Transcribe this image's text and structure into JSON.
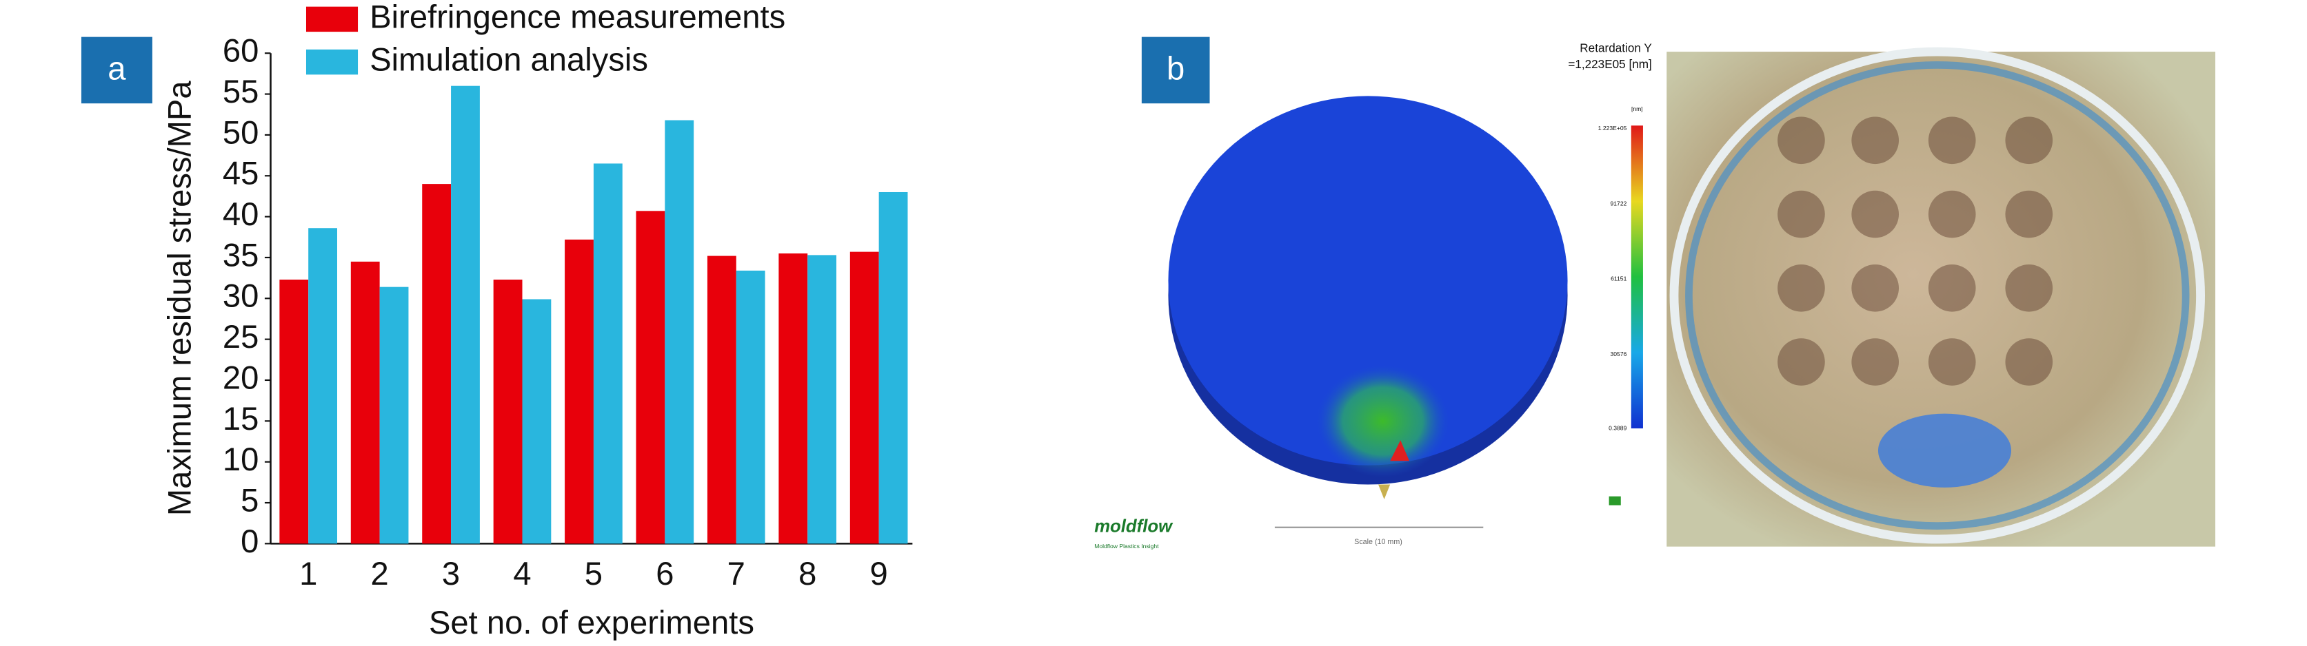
{
  "chart_data": {
    "type": "bar",
    "x_label": "Set no. of experiments",
    "y_label": "Maximum residual stress/MPa",
    "categories": [
      "1",
      "2",
      "3",
      "4",
      "5",
      "6",
      "7",
      "8",
      "9"
    ],
    "series": [
      {
        "name": "Birefringence measurements",
        "color": "#e8000b",
        "values": [
          32.3,
          34.5,
          44,
          32.3,
          37.2,
          40.7,
          35.2,
          35.5,
          35.7
        ]
      },
      {
        "name": "Simulation analysis",
        "color": "#29b6de",
        "values": [
          38.6,
          31.4,
          56,
          29.9,
          46.5,
          51.8,
          33.4,
          35.3,
          43
        ]
      }
    ],
    "ylim": [
      0,
      60
    ],
    "yticks": [
      0,
      5,
      10,
      15,
      20,
      25,
      30,
      35,
      40,
      45,
      50,
      55,
      60
    ],
    "grid": false,
    "legend": "top"
  },
  "panel_labels": [
    "a",
    "b"
  ],
  "simulation_panel": {
    "result_title": "Retardation Y",
    "result_max": "=1,223E05 [nm]",
    "unit": "[nm]",
    "scale_labels": [
      "1.223E+05",
      "91722",
      "61151",
      "30576",
      "0.3889"
    ],
    "logo": "moldflow",
    "logo_sub": "Moldflow Plastics Insight",
    "scale_bar": "Scale (10 mm)"
  }
}
